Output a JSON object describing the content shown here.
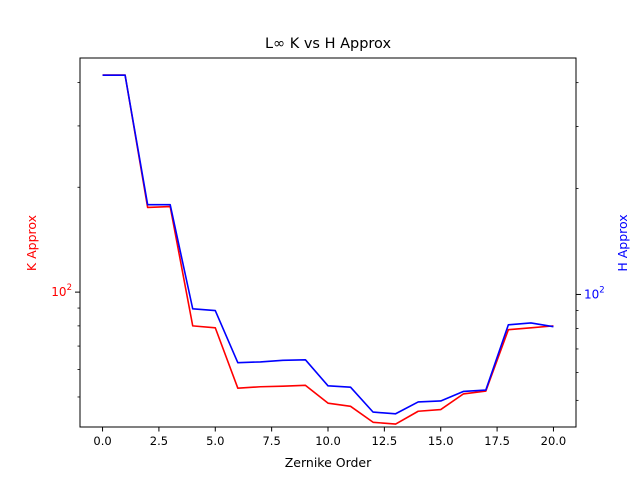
{
  "chart_data": {
    "type": "line",
    "title": "L∞ K vs H Approx",
    "xlabel": "Zernike Order",
    "ylabel_left": "K Approx",
    "ylabel_right": "H Approx",
    "xlim": [
      -1,
      21
    ],
    "x_ticks": [
      0.0,
      2.5,
      5.0,
      7.5,
      10.0,
      12.5,
      15.0,
      17.5,
      20.0
    ],
    "x_tick_labels": [
      "0.0",
      "2.5",
      "5.0",
      "7.5",
      "10.0",
      "12.5",
      "15.0",
      "17.5",
      "20.0"
    ],
    "left_axis": {
      "scale": "log",
      "ylim": [
        41,
        470
      ],
      "major_tick_value": 100,
      "major_tick_label": "10",
      "major_tick_exponent": "2",
      "color": "#ff0000"
    },
    "right_axis": {
      "scale": "log",
      "ylim": [
        42,
        470
      ],
      "major_tick_value": 100,
      "major_tick_label": "10",
      "major_tick_exponent": "2",
      "color": "#0000ff"
    },
    "x": [
      0,
      1,
      2,
      3,
      4,
      5,
      6,
      7,
      8,
      9,
      10,
      11,
      12,
      13,
      14,
      15,
      16,
      17,
      18,
      19,
      20
    ],
    "series": [
      {
        "name": "K Approx",
        "axis": "left",
        "color": "#ff0000",
        "values": [
          420,
          420,
          175,
          176,
          80,
          79,
          53,
          53.5,
          53.7,
          54,
          48,
          47,
          42.3,
          41.8,
          45.5,
          46,
          51,
          52,
          78,
          79,
          80
        ]
      },
      {
        "name": "H Approx",
        "axis": "right",
        "color": "#0000ff",
        "values": [
          420,
          420,
          180,
          180,
          91,
          90,
          64,
          64.3,
          65,
          65.2,
          55,
          54.5,
          46.3,
          45.8,
          49.5,
          49.8,
          53,
          53.5,
          82,
          83,
          81
        ]
      }
    ]
  }
}
